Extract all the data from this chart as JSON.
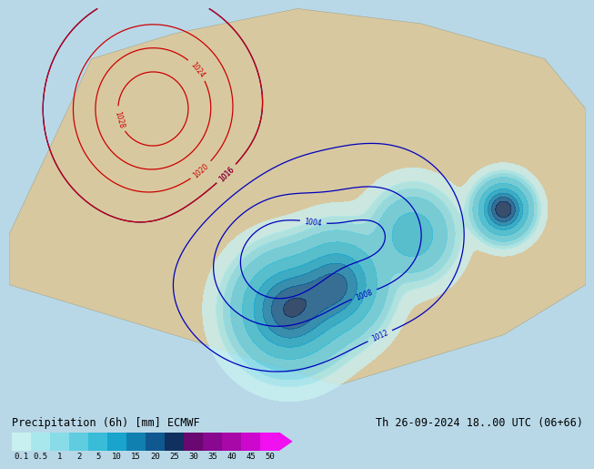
{
  "title_left": "Precipitation (6h) [mm] ECMWF",
  "title_right": "Th 26-09-2024 18..00 UTC (06+66)",
  "colorbar_labels": [
    "0.1",
    "0.5",
    "1",
    "2",
    "5",
    "10",
    "15",
    "20",
    "25",
    "30",
    "35",
    "40",
    "45",
    "50"
  ],
  "colorbar_colors": [
    "#c8f0f0",
    "#a8e8ec",
    "#88dce8",
    "#60cce0",
    "#38bcd8",
    "#18a4cc",
    "#1080b0",
    "#105890",
    "#103060",
    "#680870",
    "#880890",
    "#a808a8",
    "#cc08cc",
    "#f010f0"
  ],
  "ocean_color": "#b8dce8",
  "land_color_green": "#c8d8b0",
  "land_color_tan": "#d8c8a0",
  "land_color_high": "#c8b898",
  "precip_1": "#c8f0f8",
  "precip_2": "#a0e4f4",
  "precip_3": "#70ccec",
  "precip_4": "#40b4e4",
  "precip_5": "#1898d8",
  "precip_6": "#1070b8",
  "isobar_blue": "#0000bb",
  "isobar_red": "#cc0000",
  "contour_lw": 0.9,
  "label_fontsize": 5.5,
  "title_fontsize": 8.5,
  "cb_label_fontsize": 6.5,
  "figure_bg": "#b8d8e8"
}
